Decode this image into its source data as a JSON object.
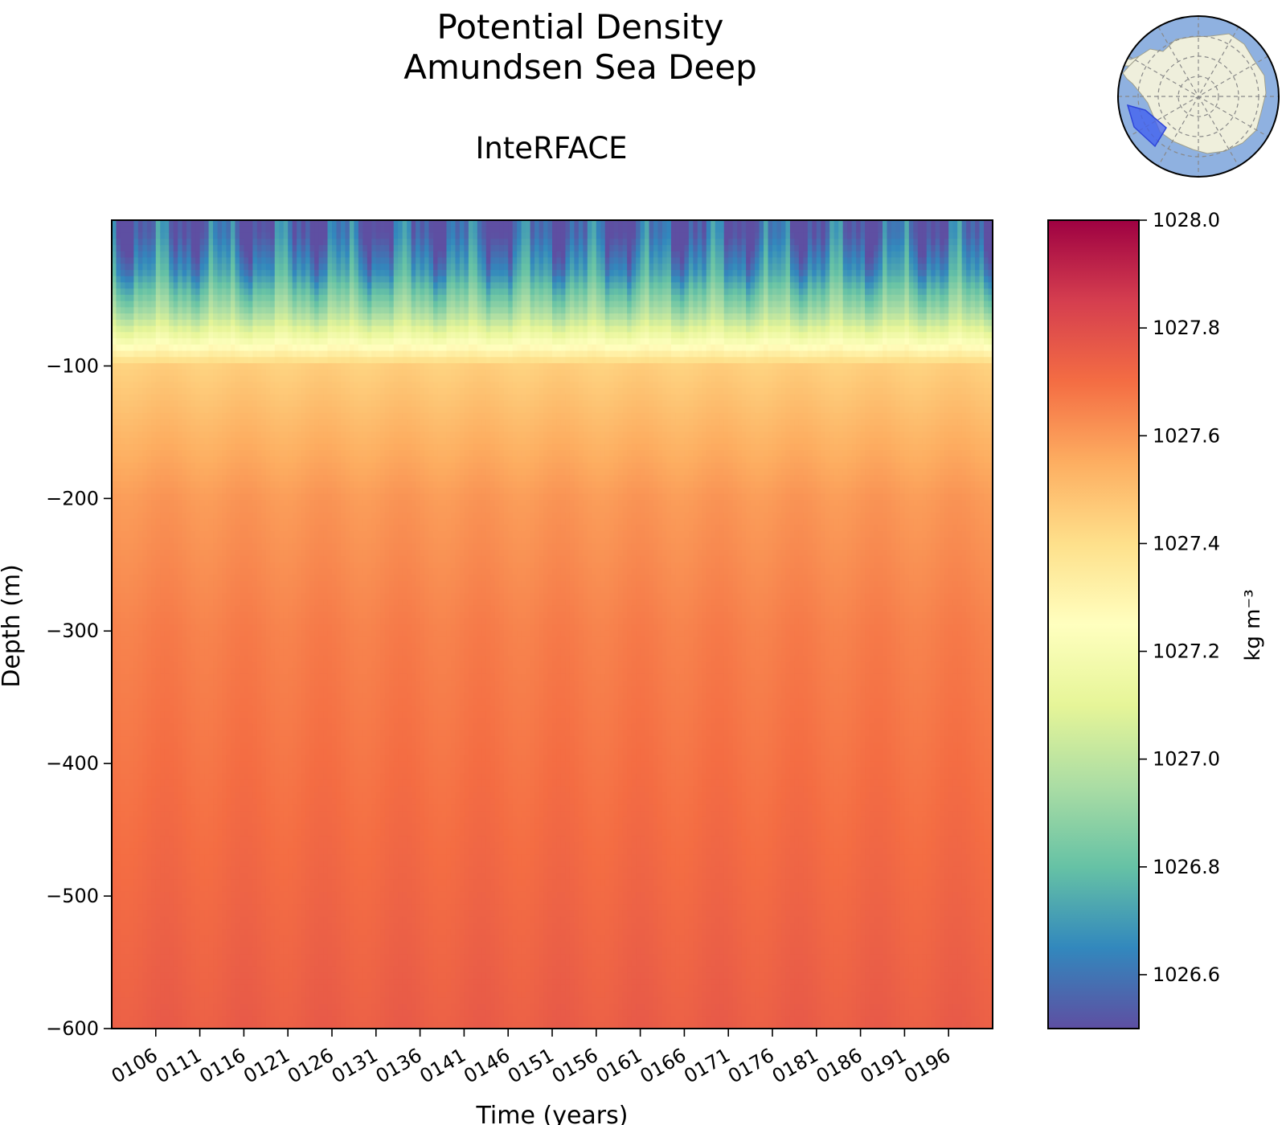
{
  "chart_data": {
    "type": "heatmap",
    "title": "Potential Density",
    "subtitle": "Amundsen Sea Deep",
    "model_label": "InteRFACE",
    "xlabel": "Time (years)",
    "ylabel": "Depth (m)",
    "x_range": [
      101,
      201
    ],
    "x_ticks": [
      "0106",
      "0111",
      "0116",
      "0121",
      "0126",
      "0131",
      "0136",
      "0141",
      "0146",
      "0151",
      "0156",
      "0161",
      "0166",
      "0171",
      "0176",
      "0181",
      "0186",
      "0191",
      "0196"
    ],
    "x_tick_values": [
      106,
      111,
      116,
      121,
      126,
      131,
      136,
      141,
      146,
      151,
      156,
      161,
      166,
      171,
      176,
      181,
      186,
      191,
      196
    ],
    "ylim": [
      -600,
      10
    ],
    "y_ticks": [
      -100,
      -200,
      -300,
      -400,
      -500,
      -600
    ],
    "y_tick_labels": [
      "−100",
      "−200",
      "−300",
      "−400",
      "−500",
      "−600"
    ],
    "colorbar": {
      "label": "kg m⁻³",
      "vmin": 1026.5,
      "vmax": 1028.0,
      "ticks": [
        1026.6,
        1026.8,
        1027.0,
        1027.2,
        1027.4,
        1027.6,
        1027.8,
        1028.0
      ],
      "tick_labels": [
        "1026.6",
        "1026.8",
        "1027.0",
        "1027.2",
        "1027.4",
        "1027.6",
        "1027.8",
        "1028.0"
      ],
      "colormap": "Spectral_r"
    },
    "depth_profile": [
      {
        "depth": 0,
        "density": 1026.55
      },
      {
        "depth": -30,
        "density": 1026.7
      },
      {
        "depth": -60,
        "density": 1026.95
      },
      {
        "depth": -85,
        "density": 1027.25
      },
      {
        "depth": -100,
        "density": 1027.45
      },
      {
        "depth": -150,
        "density": 1027.53
      },
      {
        "depth": -200,
        "density": 1027.6
      },
      {
        "depth": -300,
        "density": 1027.66
      },
      {
        "depth": -400,
        "density": 1027.69
      },
      {
        "depth": -500,
        "density": 1027.72
      },
      {
        "depth": -600,
        "density": 1027.75
      }
    ],
    "inset_map": {
      "type": "south-polar-stereographic",
      "highlighted_region": "Amundsen Sea Deep",
      "ocean_color": "#8fb1e0",
      "land_color": "#efefdc",
      "region_color": "#3d5ef0"
    }
  }
}
